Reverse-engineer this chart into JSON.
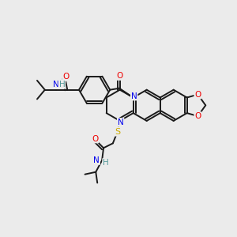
{
  "background_color": "#ebebeb",
  "atom_colors": {
    "C": "#1a1a1a",
    "N": "#0000ee",
    "O": "#ee0000",
    "S": "#ccaa00",
    "H": "#559999"
  },
  "bond_color": "#1a1a1a",
  "figsize": [
    3.0,
    3.0
  ],
  "dpi": 100
}
